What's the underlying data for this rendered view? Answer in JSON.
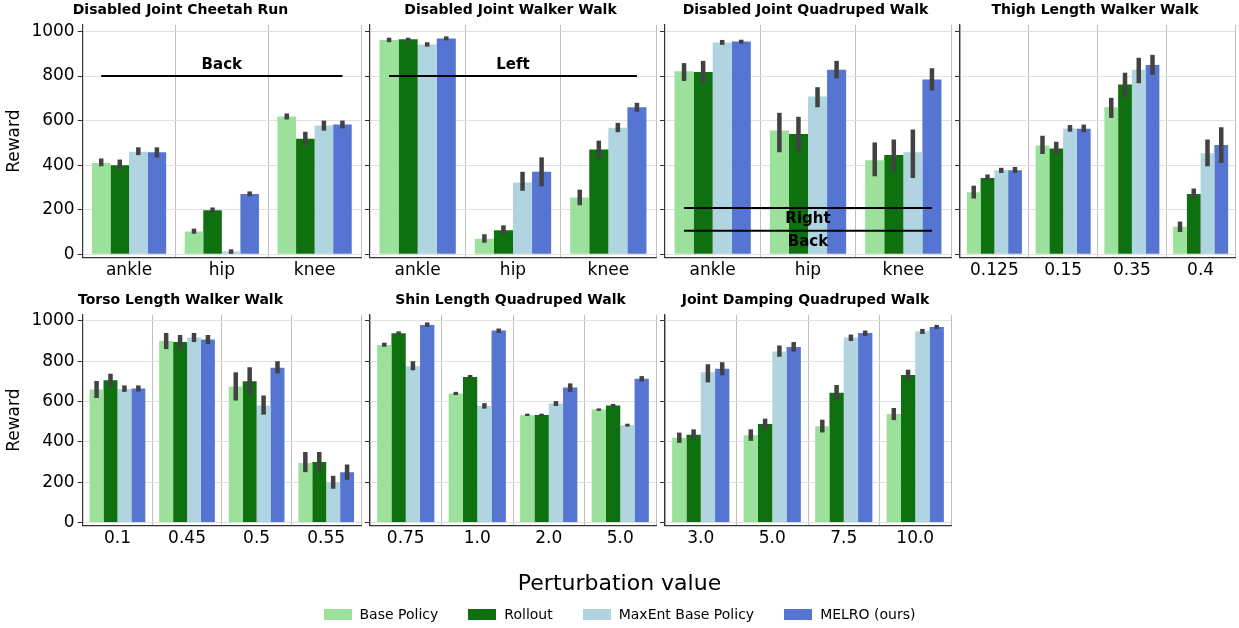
{
  "chart_data": [
    {
      "type": "bar",
      "title": "Disabled Joint Cheetah Run",
      "ylabel": "Reward",
      "legend": "bottom",
      "categories": [
        "ankle",
        "hip",
        "knee"
      ],
      "ylim": [
        -15,
        1030
      ],
      "yticks": [
        0,
        200,
        400,
        600,
        800,
        1000
      ],
      "grid": true,
      "ref_lines": [
        {
          "axis": "y",
          "value": 800,
          "label": "Back"
        }
      ],
      "series": [
        {
          "name": "Base Policy",
          "color": "#9be09b",
          "values": [
            410,
            102,
            618
          ],
          "errors": [
            [
              395,
              430
            ],
            [
              92,
              115
            ],
            [
              605,
              632
            ]
          ]
        },
        {
          "name": "Rollout",
          "color": "#0f700f",
          "values": [
            400,
            197,
            518
          ],
          "errors": [
            [
              380,
              425
            ],
            [
              185,
              210
            ],
            [
              490,
              550
            ]
          ]
        },
        {
          "name": "MaxEnt Base Policy",
          "color": "#b0d4e0",
          "values": [
            460,
            12,
            578
          ],
          "errors": [
            [
              445,
              480
            ],
            [
              2,
              22
            ],
            [
              555,
              600
            ]
          ]
        },
        {
          "name": "MELRO (ours)",
          "color": "#5674d1",
          "values": [
            458,
            270,
            582
          ],
          "errors": [
            [
              435,
              480
            ],
            [
              260,
              282
            ],
            [
              565,
              600
            ]
          ]
        }
      ]
    },
    {
      "type": "bar",
      "title": "Disabled Joint Walker Walk",
      "categories": [
        "ankle",
        "hip",
        "knee"
      ],
      "ylim": [
        -15,
        1030
      ],
      "yticks": [
        0,
        200,
        400,
        600,
        800,
        1000
      ],
      "grid": true,
      "tick_labels": "x",
      "ref_lines": [
        {
          "axis": "y",
          "value": 800,
          "label": "Left"
        }
      ],
      "series": [
        {
          "color": "#9be09b",
          "values": [
            962,
            70,
            255
          ],
          "errors": [
            [
              952,
              972
            ],
            [
              52,
              90
            ],
            [
              220,
              290
            ]
          ]
        },
        {
          "color": "#0f700f",
          "values": [
            965,
            108,
            470
          ],
          "errors": [
            [
              955,
              972
            ],
            [
              88,
              130
            ],
            [
              430,
              510
            ]
          ]
        },
        {
          "color": "#b0d4e0",
          "values": [
            942,
            322,
            568
          ],
          "errors": [
            [
              932,
              952
            ],
            [
              285,
              370
            ],
            [
              548,
              590
            ]
          ]
        },
        {
          "color": "#5674d1",
          "values": [
            968,
            370,
            660
          ],
          "errors": [
            [
              960,
              978
            ],
            [
              305,
              435
            ],
            [
              640,
              680
            ]
          ]
        }
      ]
    },
    {
      "type": "bar",
      "title": "Disabled Joint Quadruped Walk",
      "categories": [
        "ankle",
        "hip",
        "knee"
      ],
      "ylim": [
        -15,
        1030
      ],
      "yticks": [
        0,
        200,
        400,
        600,
        800,
        1000
      ],
      "grid": true,
      "tick_labels": "x",
      "ref_lines": [
        {
          "axis": "y",
          "value": 208,
          "label": "Right"
        },
        {
          "axis": "y",
          "value": 105,
          "label": "Back"
        }
      ],
      "series": [
        {
          "color": "#9be09b",
          "values": [
            822,
            555,
            422
          ],
          "errors": [
            [
              778,
              858
            ],
            [
              458,
              635
            ],
            [
              350,
              502
            ]
          ]
        },
        {
          "color": "#0f700f",
          "values": [
            818,
            540,
            445
          ],
          "errors": [
            [
              768,
              868
            ],
            [
              463,
              617
            ],
            [
              368,
              515
            ]
          ]
        },
        {
          "color": "#b0d4e0",
          "values": [
            950,
            708,
            458
          ],
          "errors": [
            [
              940,
              962
            ],
            [
              660,
              750
            ],
            [
              342,
              560
            ]
          ]
        },
        {
          "color": "#5674d1",
          "values": [
            955,
            828,
            785
          ],
          "errors": [
            [
              945,
              963
            ],
            [
              790,
              868
            ],
            [
              735,
              835
            ]
          ]
        }
      ]
    },
    {
      "type": "bar",
      "title": "Thigh Length Walker Walk",
      "categories": [
        "0.125",
        "0.15",
        "0.35",
        "0.4"
      ],
      "ylim": [
        -15,
        1030
      ],
      "yticks": [
        0,
        200,
        400,
        600,
        800,
        1000
      ],
      "grid": true,
      "tick_labels": "x",
      "series": [
        {
          "color": "#9be09b",
          "values": [
            278,
            488,
            660,
            123
          ],
          "errors": [
            [
              250,
              308
            ],
            [
              450,
              532
            ],
            [
              612,
              702
            ],
            [
              100,
              147
            ]
          ]
        },
        {
          "color": "#0f700f",
          "values": [
            342,
            475,
            762,
            270
          ],
          "errors": [
            [
              328,
              358
            ],
            [
              445,
              505
            ],
            [
              705,
              815
            ],
            [
              250,
              295
            ]
          ]
        },
        {
          "color": "#b0d4e0",
          "values": [
            377,
            565,
            828,
            453
          ],
          "errors": [
            [
              365,
              388
            ],
            [
              550,
              580
            ],
            [
              768,
              882
            ],
            [
              395,
              515
            ]
          ]
        },
        {
          "color": "#5674d1",
          "values": [
            377,
            563,
            850,
            490
          ],
          "errors": [
            [
              365,
              392
            ],
            [
              548,
              582
            ],
            [
              805,
              895
            ],
            [
              410,
              570
            ]
          ]
        }
      ]
    },
    {
      "type": "bar",
      "title": "Torso Length Walker Walk",
      "ylabel": "Reward",
      "categories": [
        "0.1",
        "0.45",
        "0.5",
        "0.55"
      ],
      "ylim": [
        -15,
        1030
      ],
      "yticks": [
        0,
        200,
        400,
        600,
        800,
        1000
      ],
      "grid": true,
      "series": [
        {
          "color": "#9be09b",
          "values": [
            660,
            900,
            675,
            295
          ],
          "errors": [
            [
              618,
              702
            ],
            [
              860,
              940
            ],
            [
              605,
              745
            ],
            [
              250,
              350
            ]
          ]
        },
        {
          "color": "#0f700f",
          "values": [
            705,
            895,
            700,
            300
          ],
          "errors": [
            [
              675,
              738
            ],
            [
              860,
              930
            ],
            [
              635,
              770
            ],
            [
              250,
              350
            ]
          ]
        },
        {
          "color": "#b0d4e0",
          "values": [
            662,
            918,
            580,
            200
          ],
          "errors": [
            [
              648,
              680
            ],
            [
              895,
              940
            ],
            [
              535,
              630
            ],
            [
              168,
              232
            ]
          ]
        },
        {
          "color": "#5674d1",
          "values": [
            665,
            907,
            768,
            250
          ],
          "errors": [
            [
              650,
              680
            ],
            [
              885,
              930
            ],
            [
              740,
              800
            ],
            [
              212,
              288
            ]
          ]
        }
      ]
    },
    {
      "type": "bar",
      "title": "Shin Length Quadruped Walk",
      "xlabel": "Perturbation value",
      "categories": [
        "0.75",
        "1.0",
        "2.0",
        "5.0"
      ],
      "ylim": [
        -15,
        1030
      ],
      "yticks": [
        0,
        200,
        400,
        600,
        800,
        1000
      ],
      "grid": true,
      "tick_labels": "x",
      "series": [
        {
          "color": "#9be09b",
          "values": [
            880,
            640,
            532,
            560
          ],
          "errors": [
            [
              872,
              892
            ],
            [
              632,
              648
            ],
            [
              528,
              540
            ],
            [
              554,
              566
            ]
          ]
        },
        {
          "color": "#0f700f",
          "values": [
            938,
            722,
            533,
            580
          ],
          "errors": [
            [
              930,
              948
            ],
            [
              715,
              732
            ],
            [
              526,
              540
            ],
            [
              573,
              588
            ]
          ]
        },
        {
          "color": "#b0d4e0",
          "values": [
            775,
            578,
            590,
            483
          ],
          "errors": [
            [
              755,
              800
            ],
            [
              565,
              592
            ],
            [
              578,
              602
            ],
            [
              476,
              490
            ]
          ]
        },
        {
          "color": "#5674d1",
          "values": [
            980,
            952,
            670,
            713
          ],
          "errors": [
            [
              970,
              992
            ],
            [
              940,
              962
            ],
            [
              648,
              690
            ],
            [
              700,
              726
            ]
          ]
        }
      ]
    },
    {
      "type": "bar",
      "title": "Joint Damping Quadruped Walk",
      "categories": [
        "3.0",
        "5.0",
        "7.5",
        "10.0"
      ],
      "ylim": [
        -15,
        1030
      ],
      "yticks": [
        0,
        200,
        400,
        600,
        800,
        1000
      ],
      "grid": true,
      "tick_labels": "x",
      "series": [
        {
          "color": "#9be09b",
          "values": [
            420,
            433,
            477,
            538
          ],
          "errors": [
            [
              395,
              446
            ],
            [
              405,
              462
            ],
            [
              447,
              510
            ],
            [
              508,
              568
            ]
          ]
        },
        {
          "color": "#0f700f",
          "values": [
            435,
            489,
            643,
            731
          ],
          "errors": [
            [
              410,
              462
            ],
            [
              465,
              515
            ],
            [
              605,
              682
            ],
            [
              705,
              758
            ]
          ]
        },
        {
          "color": "#b0d4e0",
          "values": [
            745,
            848,
            917,
            948
          ],
          "errors": [
            [
              695,
              785
            ],
            [
              822,
              878
            ],
            [
              900,
              932
            ],
            [
              935,
              960
            ]
          ]
        },
        {
          "color": "#5674d1",
          "values": [
            762,
            870,
            940,
            970
          ],
          "errors": [
            [
              730,
              795
            ],
            [
              848,
              895
            ],
            [
              925,
              952
            ],
            [
              960,
              980
            ]
          ]
        }
      ]
    }
  ]
}
